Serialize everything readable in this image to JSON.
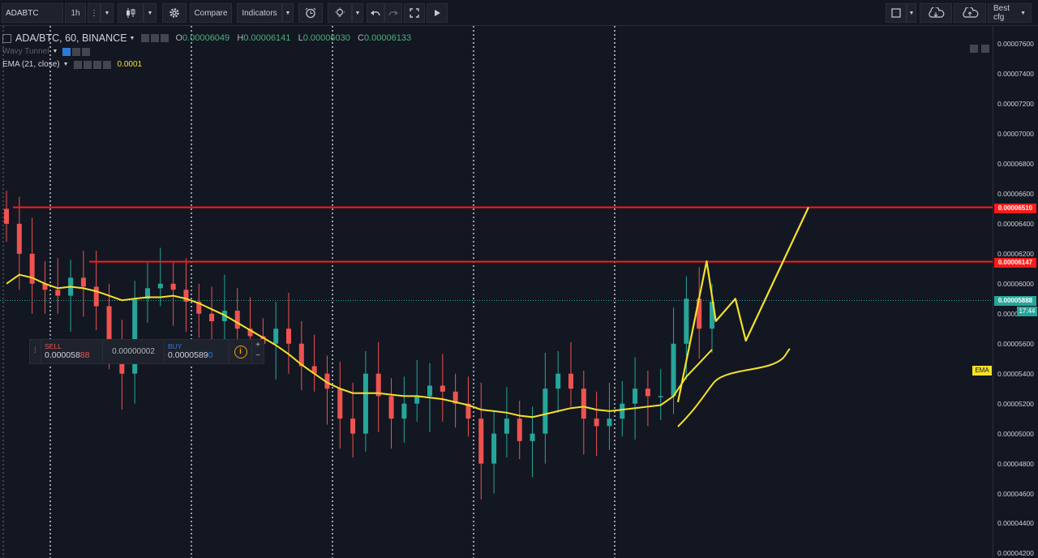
{
  "toolbar": {
    "symbol": "ADABTC",
    "interval": "1h",
    "compare_label": "Compare",
    "indicators_label": "Indicators",
    "config_label": "Best cfg"
  },
  "legend": {
    "title": "ADA/BTC, 60, BINANCE",
    "open_key": "O",
    "open": "0.00006049",
    "high_key": "H",
    "high": "0.00006141",
    "low_key": "L",
    "low": "0.00006030",
    "close_key": "C",
    "close": "0.00006133",
    "indicator1": "Wavy Tunnel",
    "indicator2": "EMA (21, close)",
    "indicator2_value": "0.0001"
  },
  "trade": {
    "sell_label": "SELL",
    "sell_price_main": "0.000058",
    "sell_price_tail": "88",
    "spread": "0.00000002",
    "buy_label": "BUY",
    "buy_price_main": "0.0000589",
    "buy_price_tail": "0"
  },
  "price_axis": {
    "ticks": [
      "0.00007600",
      "0.00007400",
      "0.00007200",
      "0.00007000",
      "0.00006800",
      "0.00006600",
      "0.00006400",
      "0.00006200",
      "0.00006000",
      "0.00005800",
      "0.00005600",
      "0.00005400",
      "0.00005200",
      "0.00005000",
      "0.00004800",
      "0.00004600",
      "0.00004400",
      "0.00004200"
    ],
    "resistance_high": "0.00006510",
    "resistance_low": "0.00006147",
    "last_price": "0.00005888",
    "countdown": "17:44",
    "ema_tag": "EMA"
  },
  "chart_data": {
    "type": "candlestick",
    "symbol": "ADA/BTC",
    "timeframe": "60",
    "exchange": "BINANCE",
    "ylim": [
      4.17e-05,
      7.72e-05
    ],
    "close_approx": [
      6.4e-05,
      6.2e-05,
      6e-05,
      5.96e-05,
      5.92e-05,
      6.04e-05,
      5.98e-05,
      5.85e-05,
      5.55e-05,
      5.4e-05,
      5.9e-05,
      5.97e-05,
      6e-05,
      5.96e-05,
      5.88e-05,
      5.8e-05,
      5.75e-05,
      5.82e-05,
      5.7e-05,
      5.65e-05,
      5.6e-05,
      5.7e-05,
      5.6e-05,
      5.45e-05,
      5.4e-05,
      5.3e-05,
      5.1e-05,
      5e-05,
      5.4e-05,
      5.25e-05,
      5.1e-05,
      5.2e-05,
      5.25e-05,
      5.32e-05,
      5.28e-05,
      5.2e-05,
      5.1e-05,
      4.8e-05,
      5e-05,
      5.1e-05,
      4.95e-05,
      5e-05,
      5.3e-05,
      5.4e-05,
      5.3e-05,
      5.1e-05,
      5.05e-05,
      5.1e-05,
      5.2e-05,
      5.3e-05,
      5.25e-05,
      5.25e-05,
      5.6e-05,
      5.9e-05,
      5.7e-05,
      5.88e-05
    ],
    "ema_approx": [
      6e-05,
      6.06e-05,
      6.04e-05,
      6e-05,
      5.97e-05,
      5.98e-05,
      5.97e-05,
      5.95e-05,
      5.92e-05,
      5.89e-05,
      5.9e-05,
      5.91e-05,
      5.91e-05,
      5.92e-05,
      5.9e-05,
      5.87e-05,
      5.83e-05,
      5.79e-05,
      5.74e-05,
      5.69e-05,
      5.64e-05,
      5.59e-05,
      5.53e-05,
      5.46e-05,
      5.4e-05,
      5.34e-05,
      5.3e-05,
      5.27e-05,
      5.27e-05,
      5.27e-05,
      5.26e-05,
      5.25e-05,
      5.25e-05,
      5.24e-05,
      5.23e-05,
      5.21e-05,
      5.19e-05,
      5.16e-05,
      5.15e-05,
      5.14e-05,
      5.12e-05,
      5.11e-05,
      5.13e-05,
      5.15e-05,
      5.17e-05,
      5.18e-05,
      5.16e-05,
      5.15e-05,
      5.16e-05,
      5.17e-05,
      5.18e-05,
      5.19e-05,
      5.25e-05,
      5.38e-05,
      5.47e-05,
      5.56e-05
    ],
    "horizontal_lines": [
      6.51e-05,
      6.147e-05
    ],
    "last_price": 5.888e-05,
    "drawn_projection": [
      {
        "t": 0.0,
        "price": 5.21e-05
      },
      {
        "t": 0.22,
        "price": 6.15e-05
      },
      {
        "t": 0.29,
        "price": 5.75e-05
      },
      {
        "t": 0.44,
        "price": 5.9e-05
      },
      {
        "t": 0.52,
        "price": 5.62e-05
      },
      {
        "t": 1.0,
        "price": 6.51e-05
      }
    ],
    "colors": {
      "up": "#26a69a",
      "down": "#ef5350",
      "ema": "#f5e12a",
      "level": "#ff1a1a"
    },
    "vertical_dotted_lines": 6,
    "grid": false
  },
  "colors": {
    "background": "#131722",
    "level_line": "#ff1a1a",
    "ema": "#f5e12a",
    "last_price": "#26a69a"
  }
}
